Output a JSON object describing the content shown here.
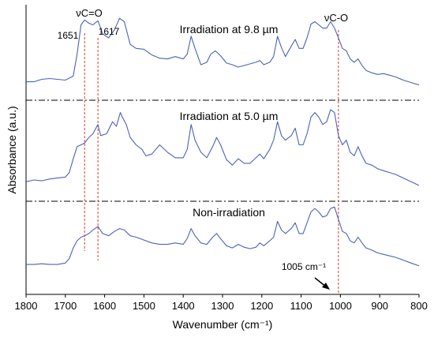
{
  "chart_data": {
    "type": "line",
    "xlabel": "Wavenumber (cm⁻¹)",
    "ylabel": "Absorbance (a.u.)",
    "xlim": [
      1800,
      800
    ],
    "x_reversed": true,
    "x_ticks": [
      1800,
      1700,
      1600,
      1500,
      1400,
      1300,
      1200,
      1100,
      1000,
      900,
      800
    ],
    "y_ticks": [],
    "grid": false,
    "legend": "none",
    "line_color": "#4a63b8",
    "annotation_color": "#e0392b",
    "separator_color": "#000000",
    "series": [
      {
        "label": "Irradiation at 9.8 µm",
        "points": [
          [
            1800,
            0.14
          ],
          [
            1780,
            0.14
          ],
          [
            1760,
            0.17
          ],
          [
            1740,
            0.18
          ],
          [
            1720,
            0.17
          ],
          [
            1700,
            0.16
          ],
          [
            1680,
            0.21
          ],
          [
            1670,
            0.48
          ],
          [
            1660,
            0.84
          ],
          [
            1651,
            0.9
          ],
          [
            1640,
            0.86
          ],
          [
            1630,
            0.84
          ],
          [
            1617,
            0.89
          ],
          [
            1605,
            0.73
          ],
          [
            1590,
            0.68
          ],
          [
            1575,
            0.78
          ],
          [
            1562,
            0.92
          ],
          [
            1550,
            0.88
          ],
          [
            1535,
            0.6
          ],
          [
            1520,
            0.55
          ],
          [
            1500,
            0.54
          ],
          [
            1480,
            0.47
          ],
          [
            1460,
            0.43
          ],
          [
            1440,
            0.42
          ],
          [
            1420,
            0.45
          ],
          [
            1400,
            0.42
          ],
          [
            1390,
            0.48
          ],
          [
            1380,
            0.7
          ],
          [
            1370,
            0.55
          ],
          [
            1355,
            0.35
          ],
          [
            1340,
            0.38
          ],
          [
            1330,
            0.48
          ],
          [
            1318,
            0.52
          ],
          [
            1305,
            0.46
          ],
          [
            1290,
            0.37
          ],
          [
            1275,
            0.35
          ],
          [
            1260,
            0.32
          ],
          [
            1245,
            0.34
          ],
          [
            1230,
            0.36
          ],
          [
            1215,
            0.38
          ],
          [
            1205,
            0.4
          ],
          [
            1195,
            0.35
          ],
          [
            1180,
            0.38
          ],
          [
            1170,
            0.45
          ],
          [
            1160,
            0.7
          ],
          [
            1150,
            0.56
          ],
          [
            1140,
            0.45
          ],
          [
            1125,
            0.58
          ],
          [
            1115,
            0.66
          ],
          [
            1105,
            0.55
          ],
          [
            1095,
            0.55
          ],
          [
            1085,
            0.68
          ],
          [
            1075,
            0.85
          ],
          [
            1065,
            0.88
          ],
          [
            1055,
            0.84
          ],
          [
            1045,
            0.8
          ],
          [
            1035,
            0.8
          ],
          [
            1025,
            0.88
          ],
          [
            1015,
            0.8
          ],
          [
            1005,
            0.68
          ],
          [
            995,
            0.55
          ],
          [
            985,
            0.52
          ],
          [
            975,
            0.42
          ],
          [
            965,
            0.38
          ],
          [
            955,
            0.42
          ],
          [
            945,
            0.34
          ],
          [
            935,
            0.28
          ],
          [
            920,
            0.25
          ],
          [
            905,
            0.23
          ],
          [
            890,
            0.24
          ],
          [
            875,
            0.22
          ],
          [
            860,
            0.2
          ],
          [
            840,
            0.16
          ],
          [
            820,
            0.13
          ],
          [
            800,
            0.1
          ]
        ]
      },
      {
        "label": "Irradiation at 5.0 µm",
        "points": [
          [
            1800,
            0.1
          ],
          [
            1780,
            0.12
          ],
          [
            1760,
            0.11
          ],
          [
            1740,
            0.13
          ],
          [
            1720,
            0.14
          ],
          [
            1700,
            0.15
          ],
          [
            1690,
            0.2
          ],
          [
            1680,
            0.35
          ],
          [
            1670,
            0.48
          ],
          [
            1660,
            0.5
          ],
          [
            1651,
            0.52
          ],
          [
            1640,
            0.58
          ],
          [
            1630,
            0.62
          ],
          [
            1617,
            0.72
          ],
          [
            1610,
            0.6
          ],
          [
            1595,
            0.62
          ],
          [
            1580,
            0.75
          ],
          [
            1570,
            0.7
          ],
          [
            1560,
            0.85
          ],
          [
            1555,
            0.8
          ],
          [
            1545,
            0.72
          ],
          [
            1535,
            0.58
          ],
          [
            1520,
            0.5
          ],
          [
            1505,
            0.45
          ],
          [
            1495,
            0.38
          ],
          [
            1480,
            0.4
          ],
          [
            1460,
            0.5
          ],
          [
            1440,
            0.42
          ],
          [
            1420,
            0.36
          ],
          [
            1400,
            0.36
          ],
          [
            1390,
            0.45
          ],
          [
            1380,
            0.72
          ],
          [
            1370,
            0.55
          ],
          [
            1355,
            0.42
          ],
          [
            1340,
            0.36
          ],
          [
            1325,
            0.48
          ],
          [
            1315,
            0.58
          ],
          [
            1305,
            0.5
          ],
          [
            1290,
            0.34
          ],
          [
            1275,
            0.28
          ],
          [
            1260,
            0.35
          ],
          [
            1245,
            0.3
          ],
          [
            1230,
            0.3
          ],
          [
            1215,
            0.36
          ],
          [
            1205,
            0.4
          ],
          [
            1195,
            0.35
          ],
          [
            1180,
            0.45
          ],
          [
            1170,
            0.55
          ],
          [
            1160,
            0.75
          ],
          [
            1150,
            0.6
          ],
          [
            1140,
            0.55
          ],
          [
            1125,
            0.6
          ],
          [
            1115,
            0.68
          ],
          [
            1105,
            0.5
          ],
          [
            1095,
            0.5
          ],
          [
            1085,
            0.62
          ],
          [
            1075,
            0.8
          ],
          [
            1065,
            0.85
          ],
          [
            1055,
            0.8
          ],
          [
            1045,
            0.72
          ],
          [
            1035,
            0.75
          ],
          [
            1025,
            0.88
          ],
          [
            1015,
            0.85
          ],
          [
            1005,
            0.6
          ],
          [
            995,
            0.5
          ],
          [
            985,
            0.55
          ],
          [
            975,
            0.42
          ],
          [
            965,
            0.38
          ],
          [
            955,
            0.48
          ],
          [
            945,
            0.38
          ],
          [
            935,
            0.3
          ],
          [
            920,
            0.28
          ],
          [
            905,
            0.24
          ],
          [
            890,
            0.22
          ],
          [
            875,
            0.2
          ],
          [
            860,
            0.18
          ],
          [
            840,
            0.14
          ],
          [
            820,
            0.1
          ],
          [
            800,
            0.06
          ]
        ]
      },
      {
        "label": "Non-irradiation",
        "points": [
          [
            1800,
            0.12
          ],
          [
            1780,
            0.12
          ],
          [
            1760,
            0.13
          ],
          [
            1740,
            0.12
          ],
          [
            1720,
            0.12
          ],
          [
            1700,
            0.14
          ],
          [
            1690,
            0.2
          ],
          [
            1680,
            0.35
          ],
          [
            1670,
            0.45
          ],
          [
            1660,
            0.5
          ],
          [
            1651,
            0.52
          ],
          [
            1640,
            0.55
          ],
          [
            1630,
            0.6
          ],
          [
            1617,
            0.65
          ],
          [
            1605,
            0.55
          ],
          [
            1590,
            0.52
          ],
          [
            1575,
            0.58
          ],
          [
            1562,
            0.62
          ],
          [
            1550,
            0.6
          ],
          [
            1535,
            0.52
          ],
          [
            1520,
            0.5
          ],
          [
            1500,
            0.46
          ],
          [
            1480,
            0.42
          ],
          [
            1460,
            0.4
          ],
          [
            1440,
            0.4
          ],
          [
            1420,
            0.42
          ],
          [
            1400,
            0.4
          ],
          [
            1390,
            0.48
          ],
          [
            1380,
            0.62
          ],
          [
            1370,
            0.52
          ],
          [
            1355,
            0.42
          ],
          [
            1340,
            0.4
          ],
          [
            1325,
            0.5
          ],
          [
            1315,
            0.55
          ],
          [
            1305,
            0.48
          ],
          [
            1290,
            0.38
          ],
          [
            1275,
            0.35
          ],
          [
            1260,
            0.4
          ],
          [
            1245,
            0.36
          ],
          [
            1230,
            0.34
          ],
          [
            1215,
            0.36
          ],
          [
            1205,
            0.42
          ],
          [
            1195,
            0.38
          ],
          [
            1180,
            0.45
          ],
          [
            1170,
            0.5
          ],
          [
            1160,
            0.72
          ],
          [
            1150,
            0.6
          ],
          [
            1140,
            0.55
          ],
          [
            1125,
            0.62
          ],
          [
            1115,
            0.7
          ],
          [
            1105,
            0.55
          ],
          [
            1095,
            0.55
          ],
          [
            1085,
            0.7
          ],
          [
            1075,
            0.85
          ],
          [
            1065,
            0.9
          ],
          [
            1055,
            0.85
          ],
          [
            1045,
            0.78
          ],
          [
            1035,
            0.8
          ],
          [
            1025,
            0.9
          ],
          [
            1015,
            0.92
          ],
          [
            1005,
            0.75
          ],
          [
            995,
            0.58
          ],
          [
            985,
            0.55
          ],
          [
            975,
            0.45
          ],
          [
            965,
            0.42
          ],
          [
            955,
            0.5
          ],
          [
            945,
            0.42
          ],
          [
            935,
            0.35
          ],
          [
            920,
            0.32
          ],
          [
            905,
            0.28
          ],
          [
            890,
            0.26
          ],
          [
            875,
            0.24
          ],
          [
            860,
            0.22
          ],
          [
            840,
            0.18
          ],
          [
            820,
            0.14
          ],
          [
            800,
            0.1
          ]
        ]
      }
    ],
    "marker_lines_x": [
      1651,
      1617,
      1005
    ],
    "annotations": {
      "vco_double": "νC=O",
      "vco_single": "νC-O",
      "peak_1651": "1651",
      "peak_1617": "1617",
      "peak_1005": "1005 cm⁻¹"
    }
  }
}
